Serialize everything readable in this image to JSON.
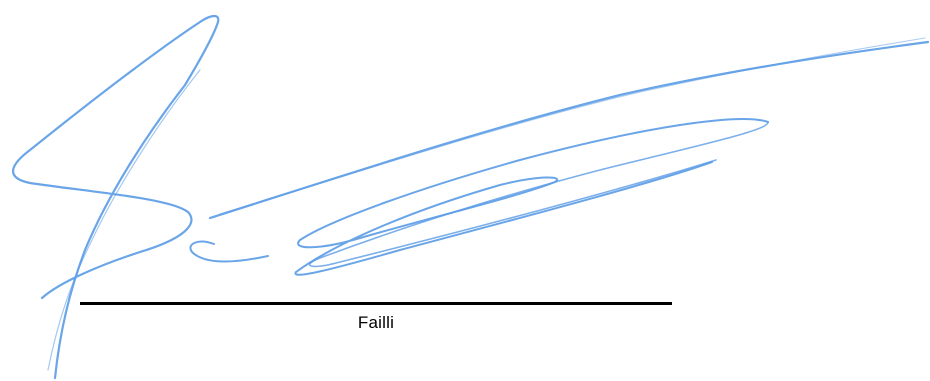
{
  "signature": {
    "signer_name": "Failli",
    "ink_color": "#5a9be6",
    "line_color": "#000000"
  }
}
